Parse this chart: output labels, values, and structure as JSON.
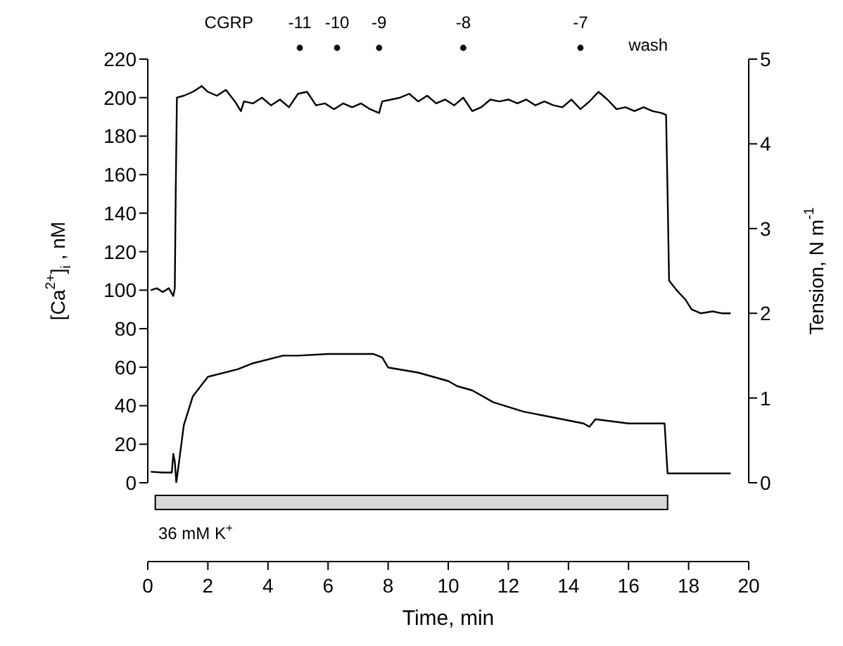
{
  "chart_data": {
    "type": "line",
    "xlabel": "Time, min",
    "ylabel": "[Ca$^{2+}$]$_{i}$ , nM",
    "y2label": "Tension, N m$^{-1}$",
    "xlim": [
      0,
      20
    ],
    "xticks": [
      0,
      2,
      4,
      6,
      8,
      10,
      12,
      14,
      16,
      18,
      20
    ],
    "ylim": [
      0,
      220
    ],
    "yticks": [
      0,
      20,
      40,
      60,
      80,
      100,
      120,
      140,
      160,
      180,
      200,
      220
    ],
    "y2lim": [
      0,
      5
    ],
    "y2ticks": [
      0,
      1,
      2,
      3,
      4,
      5
    ],
    "marker": "none",
    "line_style": "solid",
    "series": [
      {
        "color": "#000000",
        "x": [
          0.1,
          0.3,
          0.5,
          0.7,
          0.85,
          0.9,
          0.93,
          0.97,
          1.2,
          1.5,
          1.8,
          2.0,
          2.3,
          2.6,
          2.9,
          3.1,
          3.2,
          3.5,
          3.8,
          4.1,
          4.4,
          4.7,
          5.0,
          5.3,
          5.6,
          5.9,
          6.2,
          6.5,
          6.8,
          7.1,
          7.4,
          7.7,
          7.8,
          8.1,
          8.4,
          8.7,
          9.0,
          9.3,
          9.6,
          9.9,
          10.2,
          10.5,
          10.8,
          11.1,
          11.4,
          11.7,
          12.0,
          12.3,
          12.6,
          12.9,
          13.2,
          13.5,
          13.8,
          14.1,
          14.4,
          14.7,
          15.0,
          15.3,
          15.6,
          15.9,
          16.2,
          16.5,
          16.8,
          17.1,
          17.25,
          17.3,
          17.35,
          17.6,
          17.9,
          18.1,
          18.4,
          18.8,
          19.1,
          19.4
        ],
        "values": [
          100,
          101,
          99,
          101,
          97,
          101,
          150,
          200,
          201,
          203,
          206,
          203,
          201,
          204,
          198,
          193,
          198,
          197,
          200,
          196,
          199,
          195,
          202,
          203,
          196,
          197,
          194,
          197,
          195,
          197,
          194,
          192,
          198,
          199,
          200,
          202,
          198,
          201,
          197,
          199,
          196,
          200,
          193,
          195,
          199,
          198,
          199,
          197,
          199,
          196,
          198,
          196,
          195,
          199,
          194,
          198,
          203,
          199,
          194,
          195,
          193,
          195,
          193,
          192,
          191,
          150,
          105,
          100,
          95,
          90,
          88,
          89,
          88,
          88
        ]
      },
      {
        "color": "#000000",
        "axis": "y2",
        "x": [
          0.1,
          0.5,
          0.8,
          0.85,
          0.9,
          0.95,
          1.2,
          1.5,
          2.0,
          3.0,
          3.5,
          4.5,
          5.0,
          6.0,
          7.5,
          7.8,
          8.0,
          9.0,
          10.0,
          10.3,
          10.8,
          11.5,
          12.5,
          13.5,
          14.5,
          14.7,
          14.9,
          16.0,
          17.2,
          17.3,
          18.0,
          19.4
        ],
        "values": [
          0.13,
          0.12,
          0.12,
          0.34,
          0.25,
          0.0,
          0.68,
          1.02,
          1.25,
          1.34,
          1.41,
          1.5,
          1.5,
          1.52,
          1.52,
          1.48,
          1.36,
          1.3,
          1.2,
          1.14,
          1.09,
          0.95,
          0.84,
          0.77,
          0.7,
          0.66,
          0.75,
          0.7,
          0.7,
          0.11,
          0.11,
          0.11
        ]
      }
    ],
    "annotations": [
      "CGRP",
      "-11",
      "-10",
      "-9",
      "-8",
      "-7",
      "wash",
      "36 mM K$^{+}$"
    ]
  }
}
